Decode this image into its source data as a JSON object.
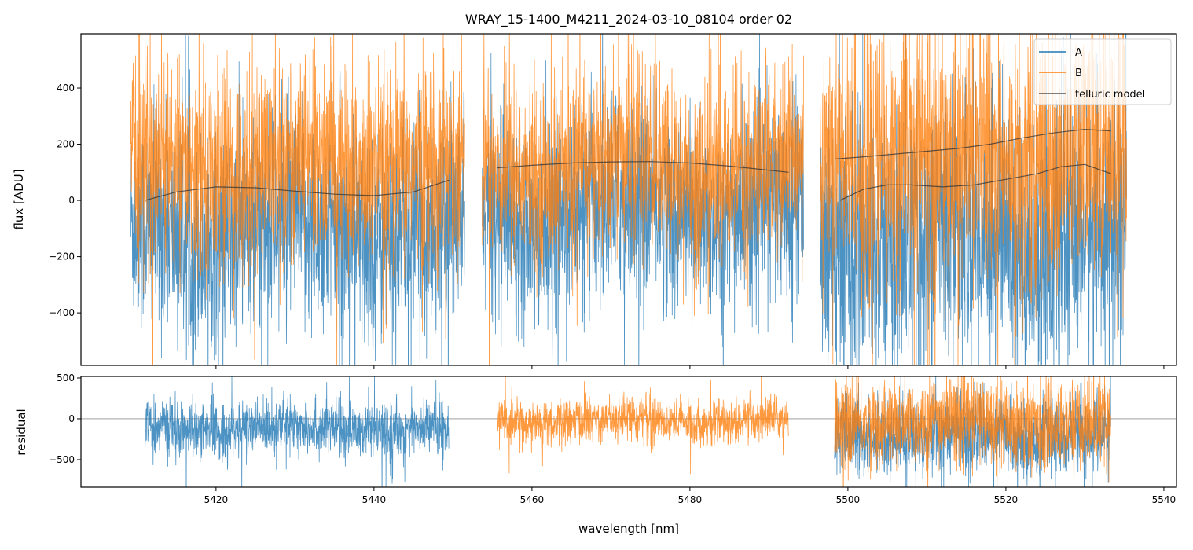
{
  "chart_data": [
    {
      "type": "line",
      "title": "WRAY_15-1400_M4211_2024-03-10_08104  order 02",
      "xlabel": "",
      "ylabel": "flux [ADU]",
      "xlim": [
        5402.9,
        5541.6
      ],
      "ylim": [
        -587,
        593
      ],
      "xticks": [
        5420,
        5440,
        5460,
        5480,
        5500,
        5520,
        5540
      ],
      "yticks": [
        -400,
        -200,
        0,
        200,
        400
      ],
      "legend": {
        "placement": "top-right",
        "entries": [
          "A",
          "B",
          "telluric model"
        ]
      },
      "colors": {
        "A": "#1f77b4",
        "B": "#ff7f0e",
        "model": "#333333"
      },
      "series": [
        {
          "name": "A",
          "segments": [
            [
              5409.2,
              5451.5
            ],
            [
              5453.7,
              5494.4
            ],
            [
              5496.5,
              5535.3
            ]
          ],
          "mean": [
            -110,
            -40,
            -130
          ],
          "noise_sd": [
            190,
            170,
            230
          ]
        },
        {
          "name": "B",
          "segments": [
            [
              5409.2,
              5451.5
            ],
            [
              5453.7,
              5494.4
            ],
            [
              5496.5,
              5535.3
            ]
          ],
          "mean": [
            120,
            120,
            150
          ],
          "noise_sd": [
            180,
            160,
            230
          ]
        },
        {
          "name": "telluric model",
          "curves": [
            {
              "x": [
                5411,
                5415,
                5420,
                5425,
                5430,
                5435,
                5440,
                5445,
                5449.5
              ],
              "y": [
                0,
                30,
                48,
                45,
                33,
                22,
                17,
                30,
                72
              ]
            },
            {
              "x": [
                5455.6,
                5460,
                5465,
                5470,
                5475,
                5480,
                5485,
                5492.5
              ],
              "y": [
                116,
                125,
                133,
                137,
                138,
                133,
                122,
                100
              ]
            },
            {
              "x": [
                5498.3,
                5502,
                5506,
                5510,
                5514,
                5518,
                5522,
                5526,
                5530,
                5533.3
              ],
              "y": [
                147,
                155,
                165,
                175,
                185,
                200,
                222,
                240,
                253,
                247
              ]
            },
            {
              "x": [
                5499,
                5502,
                5505,
                5508,
                5512,
                5516,
                5520,
                5524,
                5527,
                5530,
                5533.3
              ],
              "y": [
                0,
                40,
                55,
                55,
                48,
                55,
                75,
                95,
                120,
                128,
                95
              ]
            }
          ]
        }
      ]
    },
    {
      "type": "line",
      "title": "",
      "xlabel": "wavelength [nm]",
      "ylabel": "residual",
      "xlim": [
        5402.9,
        5541.6
      ],
      "ylim": [
        -837,
        519
      ],
      "xticks": [
        5420,
        5440,
        5460,
        5480,
        5500,
        5520,
        5540
      ],
      "yticks": [
        -500,
        0,
        500
      ],
      "zero_line": true,
      "series": [
        {
          "name": "A",
          "segments": [
            [
              5411,
              5449.5
            ],
            [
              5498.3,
              5533.3
            ]
          ],
          "mean": [
            -120,
            -200
          ],
          "noise_sd": [
            160,
            230
          ]
        },
        {
          "name": "B",
          "segments": [
            [
              5455.6,
              5492.5
            ],
            [
              5498.3,
              5533.3
            ]
          ],
          "mean": [
            -20,
            -40
          ],
          "noise_sd": [
            130,
            260
          ]
        }
      ]
    }
  ]
}
